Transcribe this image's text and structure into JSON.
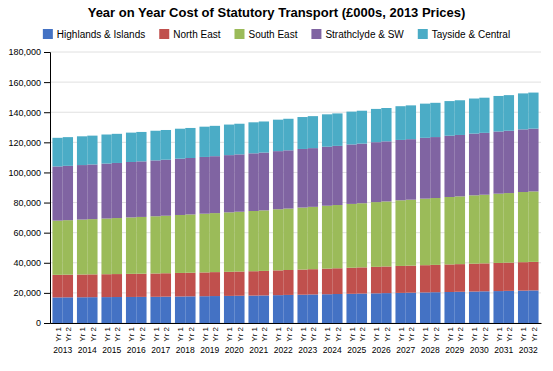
{
  "chart_data": {
    "type": "bar",
    "title": "Year on Year Cost of Statutory Transport (£000s, 2013 Prices)",
    "stacked": true,
    "legend": "top",
    "grid": true,
    "groups": [
      "2013",
      "2014",
      "2015",
      "2016",
      "2017",
      "2018",
      "2019",
      "2020",
      "2021",
      "2022",
      "2023",
      "2024",
      "2025",
      "2026",
      "2027",
      "2028",
      "2029",
      "2030",
      "2031",
      "2032"
    ],
    "categories": [
      "Yr 1",
      "Yr 2",
      "Yr 1",
      "Yr 2",
      "Yr 1",
      "Yr 2",
      "Yr 1",
      "Yr 2",
      "Yr 1",
      "Yr 2",
      "Yr 1",
      "Yr 2",
      "Yr 1",
      "Yr 2",
      "Yr 1",
      "Yr 2",
      "Yr 1",
      "Yr 2",
      "Yr 1",
      "Yr 2",
      "Yr 1",
      "Yr 2",
      "Yr 1",
      "Yr 2",
      "Yr 1",
      "Yr 2",
      "Yr 1",
      "Yr 2",
      "Yr 1",
      "Yr 2",
      "Yr 1",
      "Yr 2",
      "Yr 1",
      "Yr 2",
      "Yr 1",
      "Yr 2",
      "Yr 1",
      "Yr 2",
      "Yr 1",
      "Yr 2"
    ],
    "series": [
      {
        "name": "Highlands & Islands",
        "color": "#4472C4",
        "values": [
          17000,
          17050,
          17100,
          17150,
          17200,
          17250,
          17300,
          17350,
          17400,
          17500,
          17600,
          17700,
          17800,
          17900,
          18000,
          18100,
          18200,
          18300,
          18500,
          18650,
          18800,
          18950,
          19100,
          19250,
          19400,
          19550,
          19700,
          19850,
          20000,
          20150,
          20300,
          20450,
          20600,
          20750,
          20900,
          21050,
          21200,
          21350,
          21500,
          21650
        ]
      },
      {
        "name": "North East",
        "color": "#C0504D",
        "values": [
          15000,
          15050,
          15100,
          15150,
          15200,
          15250,
          15350,
          15400,
          15500,
          15550,
          15650,
          15700,
          15800,
          15900,
          16000,
          16100,
          16200,
          16300,
          16450,
          16550,
          16700,
          16800,
          17000,
          17100,
          17300,
          17400,
          17600,
          17700,
          17900,
          17950,
          18100,
          18150,
          18300,
          18350,
          18500,
          18550,
          18700,
          18750,
          18900,
          18950
        ]
      },
      {
        "name": "South East",
        "color": "#9BBB59",
        "values": [
          36000,
          36200,
          36500,
          36700,
          37000,
          37200,
          37500,
          37700,
          38000,
          38200,
          38500,
          38700,
          39000,
          39200,
          39500,
          39700,
          40000,
          40200,
          40600,
          40800,
          41200,
          41400,
          41800,
          42000,
          42400,
          42600,
          43000,
          43200,
          43600,
          43800,
          44200,
          44400,
          44800,
          45000,
          45400,
          45600,
          46000,
          46200,
          46600,
          46800
        ]
      },
      {
        "name": "Strathclyde & SW",
        "color": "#8064A2",
        "values": [
          36000,
          36100,
          36200,
          36300,
          36500,
          36600,
          36800,
          36900,
          37100,
          37200,
          37400,
          37500,
          37700,
          37800,
          38000,
          38100,
          38300,
          38400,
          38600,
          38700,
          38900,
          39000,
          39200,
          39300,
          39500,
          39600,
          39800,
          39900,
          40100,
          40200,
          40400,
          40500,
          40700,
          40800,
          41000,
          41100,
          41300,
          41400,
          41600,
          41700
        ]
      },
      {
        "name": "Tayside & Central",
        "color": "#4BACC6",
        "values": [
          19000,
          19050,
          19100,
          19150,
          19300,
          19350,
          19500,
          19550,
          19700,
          19750,
          19900,
          19950,
          20100,
          20150,
          20300,
          20350,
          20600,
          20650,
          20900,
          20950,
          21200,
          21250,
          21500,
          21550,
          21800,
          21850,
          22100,
          22150,
          22400,
          22450,
          22700,
          22750,
          23000,
          23050,
          23300,
          23350,
          23600,
          23650,
          23900,
          23950
        ]
      }
    ],
    "ylim": [
      0,
      180000
    ],
    "yticks": [
      0,
      {
        "value": 20000,
        "label": "20,000"
      },
      {
        "value": 40000,
        "label": "40,000"
      },
      {
        "value": 60000,
        "label": "60,000"
      },
      {
        "value": 80000,
        "label": "80,000"
      },
      {
        "value": 100000,
        "label": "100,000"
      },
      {
        "value": 120000,
        "label": "120,000"
      },
      {
        "value": 140000,
        "label": "140,000"
      },
      {
        "value": 160000,
        "label": "160,000"
      },
      {
        "value": 180000,
        "label": "180,000"
      }
    ]
  }
}
